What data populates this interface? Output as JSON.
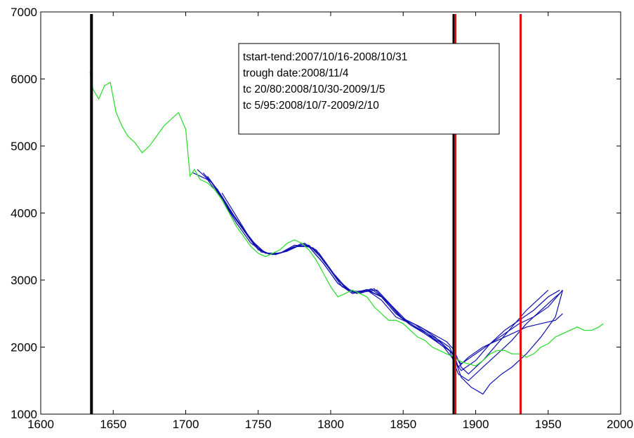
{
  "chart_data": {
    "type": "line",
    "title": "",
    "xlabel": "",
    "ylabel": "",
    "xlim": [
      1600,
      2000
    ],
    "ylim": [
      1000,
      7000
    ],
    "x_ticks": [
      1600,
      1650,
      1700,
      1750,
      1800,
      1850,
      1900,
      1950,
      2000
    ],
    "y_ticks": [
      1000,
      2000,
      3000,
      4000,
      5000,
      6000,
      7000
    ],
    "grid": false,
    "colors": {
      "data": "#33dd33",
      "fits": "#1010b0",
      "black_markers": "#000000",
      "red_markers": "#dd1111"
    },
    "annotation_lines": [
      "tstart-tend:2007/10/16-2008/10/31",
      "trough date:2008/11/4",
      "tc 20/80:2008/10/30-2009/1/5",
      "tc 5/95:2008/10/7-2009/2/10"
    ],
    "vertical_markers": [
      {
        "x": 1635,
        "color": "black"
      },
      {
        "x": 1885,
        "color": "black"
      },
      {
        "x": 1886,
        "color": "red"
      },
      {
        "x": 1931,
        "color": "red"
      }
    ],
    "series": [
      {
        "role": "data",
        "x": [
          1634,
          1636,
          1640,
          1644,
          1648,
          1652,
          1656,
          1660,
          1665,
          1670,
          1675,
          1680,
          1685,
          1690,
          1695,
          1700,
          1703,
          1706,
          1710,
          1715,
          1720,
          1725,
          1730,
          1735,
          1740,
          1745,
          1750,
          1755,
          1760,
          1765,
          1770,
          1775,
          1780,
          1785,
          1790,
          1795,
          1800,
          1805,
          1810,
          1815,
          1820,
          1825,
          1830,
          1835,
          1840,
          1845,
          1850,
          1855,
          1860,
          1865,
          1870,
          1875,
          1880,
          1885,
          1890,
          1895,
          1900,
          1905,
          1910,
          1915,
          1920,
          1925,
          1930,
          1935,
          1940,
          1945,
          1950,
          1955,
          1960,
          1965,
          1970,
          1975,
          1980,
          1985,
          1988
        ],
        "y": [
          6100,
          5850,
          5700,
          5900,
          5950,
          5500,
          5300,
          5150,
          5050,
          4900,
          5000,
          5150,
          5300,
          5400,
          5500,
          5250,
          4550,
          4650,
          4500,
          4450,
          4350,
          4200,
          4000,
          3800,
          3650,
          3500,
          3400,
          3350,
          3400,
          3450,
          3550,
          3600,
          3550,
          3450,
          3300,
          3100,
          2900,
          2750,
          2800,
          2850,
          2800,
          2750,
          2600,
          2500,
          2400,
          2400,
          2350,
          2250,
          2150,
          2100,
          2000,
          1950,
          1900,
          1850,
          1780,
          1750,
          1720,
          1800,
          1900,
          1950,
          1950,
          1900,
          1900,
          1850,
          1900,
          2000,
          2050,
          2150,
          2200,
          2250,
          2300,
          2250,
          2250,
          2300,
          2350
        ]
      },
      {
        "role": "fit",
        "x": [
          1705,
          1715,
          1725,
          1735,
          1745,
          1755,
          1765,
          1775,
          1785,
          1795,
          1805,
          1815,
          1825,
          1835,
          1845,
          1855,
          1865,
          1875,
          1885,
          1888,
          1895,
          1905,
          1915,
          1925,
          1935,
          1945,
          1955,
          1960
        ],
        "y": [
          4600,
          4500,
          4200,
          3850,
          3550,
          3400,
          3400,
          3500,
          3500,
          3250,
          2950,
          2800,
          2850,
          2700,
          2450,
          2350,
          2200,
          2050,
          1900,
          1700,
          1850,
          2000,
          2100,
          2200,
          2300,
          2350,
          2400,
          2500
        ]
      },
      {
        "role": "fit",
        "x": [
          1708,
          1718,
          1728,
          1738,
          1748,
          1758,
          1768,
          1778,
          1788,
          1798,
          1808,
          1818,
          1828,
          1838,
          1848,
          1858,
          1868,
          1878,
          1886,
          1890,
          1900,
          1910,
          1920,
          1930,
          1940,
          1950,
          1958
        ],
        "y": [
          4650,
          4450,
          4100,
          3800,
          3500,
          3380,
          3420,
          3520,
          3480,
          3200,
          2900,
          2800,
          2870,
          2700,
          2450,
          2340,
          2180,
          2000,
          1780,
          1650,
          1800,
          2050,
          2250,
          2400,
          2550,
          2750,
          2850
        ]
      },
      {
        "role": "fit",
        "x": [
          1712,
          1722,
          1732,
          1742,
          1752,
          1762,
          1772,
          1782,
          1792,
          1802,
          1812,
          1822,
          1832,
          1842,
          1852,
          1862,
          1872,
          1882,
          1886,
          1890,
          1900,
          1910,
          1920,
          1930,
          1940,
          1950,
          1960
        ],
        "y": [
          4600,
          4350,
          4000,
          3700,
          3420,
          3380,
          3450,
          3550,
          3400,
          3100,
          2850,
          2820,
          2850,
          2620,
          2400,
          2300,
          2150,
          1950,
          1850,
          1750,
          1900,
          2050,
          2200,
          2350,
          2450,
          2600,
          2850
        ]
      },
      {
        "role": "fit",
        "x": [
          1715,
          1725,
          1735,
          1745,
          1755,
          1765,
          1775,
          1785,
          1795,
          1805,
          1815,
          1825,
          1835,
          1845,
          1855,
          1865,
          1875,
          1882,
          1888,
          1895,
          1905,
          1915,
          1925,
          1935,
          1945,
          1955,
          1958
        ],
        "y": [
          4550,
          4250,
          3900,
          3600,
          3400,
          3400,
          3500,
          3520,
          3300,
          3000,
          2820,
          2850,
          2750,
          2500,
          2330,
          2200,
          2080,
          1950,
          1600,
          1500,
          1700,
          1900,
          2100,
          2350,
          2550,
          2750,
          2800
        ]
      },
      {
        "role": "fit",
        "x": [
          1720,
          1730,
          1740,
          1750,
          1760,
          1770,
          1780,
          1790,
          1800,
          1810,
          1820,
          1830,
          1840,
          1850,
          1860,
          1870,
          1880,
          1885,
          1890,
          1895,
          1905,
          1915,
          1925,
          1935,
          1945,
          1950
        ],
        "y": [
          4400,
          4050,
          3750,
          3450,
          3380,
          3430,
          3550,
          3450,
          3150,
          2880,
          2800,
          2870,
          2650,
          2420,
          2320,
          2200,
          2080,
          1960,
          1700,
          1600,
          1800,
          2050,
          2300,
          2550,
          2750,
          2850
        ]
      },
      {
        "role": "fit",
        "x": [
          1725,
          1735,
          1745,
          1755,
          1765,
          1775,
          1785,
          1795,
          1805,
          1815,
          1825,
          1835,
          1845,
          1855,
          1865,
          1875,
          1882,
          1886,
          1890,
          1897,
          1905,
          1910,
          1918,
          1925,
          1935,
          1945,
          1955,
          1960
        ],
        "y": [
          4300,
          3950,
          3600,
          3400,
          3400,
          3520,
          3500,
          3250,
          2950,
          2800,
          2860,
          2750,
          2500,
          2350,
          2220,
          2100,
          2000,
          1800,
          1550,
          1400,
          1300,
          1450,
          1600,
          1700,
          1900,
          2150,
          2450,
          2850
        ]
      }
    ]
  }
}
